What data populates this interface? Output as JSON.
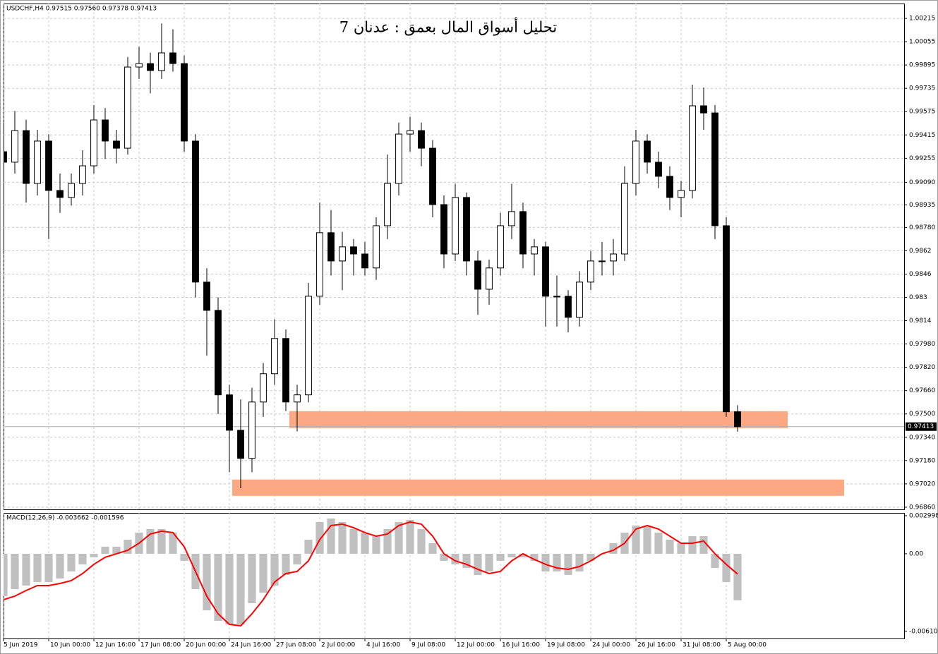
{
  "chart_data": [
    {
      "type": "candlestick",
      "title": "تحليل أسواق المال بعمق : عدنان 7",
      "header": "USDCHF,H4  0.97515 0.97560 0.97378 0.97413",
      "up_color": "#ffffff",
      "down_color": "#000000",
      "wick_color": "#000000",
      "candles": [
        [
          0.993,
          0.995,
          0.986,
          0.99228
        ],
        [
          0.99228,
          0.9958,
          0.9915,
          0.99445
        ],
        [
          0.99445,
          0.9952,
          0.9895,
          0.99082
        ],
        [
          0.99082,
          0.9945,
          0.99,
          0.99373
        ],
        [
          0.99373,
          0.9942,
          0.987,
          0.99034
        ],
        [
          0.99034,
          0.9915,
          0.9888,
          0.98986
        ],
        [
          0.98986,
          0.9915,
          0.9893,
          0.99082
        ],
        [
          0.99082,
          0.9931,
          0.99,
          0.99203
        ],
        [
          0.99203,
          0.9962,
          0.9915,
          0.99518
        ],
        [
          0.99518,
          0.996,
          0.9925,
          0.99373
        ],
        [
          0.99373,
          0.9945,
          0.9922,
          0.99324
        ],
        [
          0.99324,
          0.9995,
          0.9928,
          0.99881
        ],
        [
          0.99881,
          1.0002,
          0.998,
          0.99905
        ],
        [
          0.99905,
          0.9998,
          0.997,
          0.99857
        ],
        [
          0.99857,
          1.0018,
          0.998,
          0.99978
        ],
        [
          0.99978,
          1.0014,
          0.9985,
          0.99905
        ],
        [
          0.99905,
          0.9996,
          0.993,
          0.99373
        ],
        [
          0.99373,
          0.9942,
          0.983,
          0.98405
        ],
        [
          0.98405,
          0.985,
          0.979,
          0.98211
        ],
        [
          0.98211,
          0.983,
          0.975,
          0.97631
        ],
        [
          0.97631,
          0.977,
          0.971,
          0.97388
        ],
        [
          0.97388,
          0.976,
          0.9699,
          0.97195
        ],
        [
          0.97195,
          0.9768,
          0.971,
          0.97582
        ],
        [
          0.97582,
          0.9785,
          0.9748,
          0.97776
        ],
        [
          0.97776,
          0.9815,
          0.977,
          0.98018
        ],
        [
          0.98018,
          0.9808,
          0.9752,
          0.97582
        ],
        [
          0.97582,
          0.977,
          0.9738,
          0.97631
        ],
        [
          0.97631,
          0.984,
          0.9758,
          0.98308
        ],
        [
          0.98308,
          0.9895,
          0.9825,
          0.98744
        ],
        [
          0.98744,
          0.989,
          0.9845,
          0.9855
        ],
        [
          0.9855,
          0.9875,
          0.9835,
          0.98647
        ],
        [
          0.98647,
          0.987,
          0.9845,
          0.98598
        ],
        [
          0.98598,
          0.9868,
          0.9845,
          0.98502
        ],
        [
          0.98502,
          0.9885,
          0.9842,
          0.98792
        ],
        [
          0.98792,
          0.9928,
          0.987,
          0.99082
        ],
        [
          0.99082,
          0.995,
          0.99,
          0.99421
        ],
        [
          0.99421,
          0.9954,
          0.993,
          0.99445
        ],
        [
          0.99445,
          0.995,
          0.992,
          0.99324
        ],
        [
          0.99324,
          0.9938,
          0.9885,
          0.98937
        ],
        [
          0.98937,
          0.99,
          0.985,
          0.98598
        ],
        [
          0.98598,
          0.9908,
          0.9855,
          0.98986
        ],
        [
          0.98986,
          0.9902,
          0.9845,
          0.9855
        ],
        [
          0.9855,
          0.9862,
          0.9818,
          0.98356
        ],
        [
          0.98356,
          0.9856,
          0.9825,
          0.98502
        ],
        [
          0.98502,
          0.9888,
          0.9845,
          0.98792
        ],
        [
          0.98792,
          0.9908,
          0.987,
          0.98889
        ],
        [
          0.98889,
          0.9895,
          0.985,
          0.98598
        ],
        [
          0.98598,
          0.987,
          0.9845,
          0.98647
        ],
        [
          0.98647,
          0.9868,
          0.981,
          0.98308
        ],
        [
          0.98308,
          0.9845,
          0.981,
          0.98308
        ],
        [
          0.98308,
          0.9835,
          0.9806,
          0.98163
        ],
        [
          0.98163,
          0.9848,
          0.981,
          0.98405
        ],
        [
          0.98405,
          0.9862,
          0.9835,
          0.9855
        ],
        [
          0.9855,
          0.9868,
          0.9845,
          0.9855
        ],
        [
          0.9855,
          0.987,
          0.9845,
          0.98598
        ],
        [
          0.98598,
          0.992,
          0.9855,
          0.99082
        ],
        [
          0.99082,
          0.9945,
          0.99,
          0.99373
        ],
        [
          0.99373,
          0.9942,
          0.9915,
          0.99228
        ],
        [
          0.99228,
          0.993,
          0.9905,
          0.99131
        ],
        [
          0.99131,
          0.992,
          0.989,
          0.98986
        ],
        [
          0.98986,
          0.991,
          0.9885,
          0.99034
        ],
        [
          0.99034,
          0.9976,
          0.9898,
          0.99615
        ],
        [
          0.99615,
          0.9974,
          0.9945,
          0.99566
        ],
        [
          0.99566,
          0.9962,
          0.987,
          0.98792
        ],
        [
          0.98792,
          0.9885,
          0.9748,
          0.97515
        ],
        [
          0.97515,
          0.9756,
          0.97378,
          0.97413
        ]
      ],
      "xlim": [
        0,
        79.75
      ],
      "xticks": [
        {
          "value": 0,
          "label": "5 Jun 2019"
        },
        {
          "value": 4,
          "label": "10 Jun 00:00"
        },
        {
          "value": 8,
          "label": "12 Jun 16:00"
        },
        {
          "value": 12,
          "label": "17 Jun 08:00"
        },
        {
          "value": 16,
          "label": "20 Jun 00:00"
        },
        {
          "value": 20,
          "label": "24 Jun 16:00"
        },
        {
          "value": 24,
          "label": "27 Jun 08:00"
        },
        {
          "value": 28,
          "label": "2 Jul 00:00"
        },
        {
          "value": 32,
          "label": "4 Jul 16:00"
        },
        {
          "value": 36,
          "label": "9 Jul 08:00"
        },
        {
          "value": 40,
          "label": "12 Jul 00:00"
        },
        {
          "value": 44,
          "label": "16 Jul 16:00"
        },
        {
          "value": 48,
          "label": "19 Jul 08:00"
        },
        {
          "value": 52,
          "label": "24 Jul 00:00"
        },
        {
          "value": 56,
          "label": "26 Jul 16:00"
        },
        {
          "value": 60,
          "label": "31 Jul 08:00"
        },
        {
          "value": 64,
          "label": "5 Aug 00:00"
        }
      ],
      "ylim": [
        0.96845,
        1.00317
      ],
      "yticks": [
        1.00215,
        1.00055,
        0.99895,
        0.99735,
        0.99575,
        0.99415,
        0.99255,
        {
          "value": 0.9909,
          "label": "0.99090"
        },
        0.98935,
        {
          "value": 0.9878,
          "label": "0.98780"
        },
        0.9862,
        0.9846,
        0.983,
        0.9814,
        {
          "value": 0.9798,
          "label": "0.97980"
        },
        {
          "value": 0.9782,
          "label": "0.97820"
        },
        {
          "value": 0.9766,
          "label": "0.97660"
        },
        {
          "value": 0.975,
          "label": "0.97500"
        },
        {
          "value": 0.9734,
          "label": "0.97340"
        },
        {
          "value": 0.9718,
          "label": "0.97180"
        },
        {
          "value": 0.9702,
          "label": "0.97020"
        },
        {
          "value": 0.9686,
          "label": "0.96860"
        }
      ],
      "grid": true,
      "current_price": 0.97413,
      "zones": [
        {
          "x": [
            25.31,
            69.44
          ],
          "y": [
            0.97403,
            0.97519
          ],
          "color": "#fca882"
        },
        {
          "x": [
            20.25,
            74.44
          ],
          "y": [
            0.96938,
            0.9705
          ],
          "color": "#fca882"
        }
      ]
    },
    {
      "type": "macd",
      "title": "MACD(12,26,9) -0.003662 -0.001596",
      "histogram": {
        "color": "#c0c0c0",
        "values": [
          -0.003336,
          -0.00278,
          -0.002502,
          -0.002224,
          -0.002224,
          -0.001946,
          -0.00139,
          -0.000834,
          -0.000278,
          0.000556,
          0.000556,
          0.001112,
          0.001668,
          0.001946,
          0.001946,
          0.001668,
          -0.000556,
          -0.00278,
          -0.004448,
          -0.005282,
          -0.00556,
          -0.00556,
          -0.003892,
          -0.003058,
          -0.002502,
          -0.001668,
          -0.000834,
          0.001112,
          0.002502,
          0.00278,
          0.002502,
          0.001946,
          0.001668,
          0.00139,
          0.001946,
          0.002502,
          0.002669,
          0.001946,
          0.000834,
          -0.000556,
          -0.000834,
          -0.001112,
          -0.001668,
          -0.00139,
          -0.000556,
          -0.000278,
          -0.000278,
          -0.000556,
          -0.00139,
          -0.00139,
          -0.001668,
          -0.00139,
          -0.000556,
          0,
          0.000834,
          0.001668,
          0.002224,
          0.002224,
          0.001668,
          0.001112,
          0.000834,
          0.00139,
          0.00139,
          -0.001112,
          -0.002224,
          -0.003662
        ]
      },
      "signal": {
        "color": "#ff0000",
        "values": [
          -0.003614,
          -0.003336,
          -0.002891,
          -0.002502,
          -0.002502,
          -0.002335,
          -0.002113,
          -0.001557,
          -0.000834,
          -0.000278,
          0,
          0.000278,
          0.000834,
          0.001557,
          0.001779,
          0.001668,
          0.000556,
          -0.00139,
          -0.003336,
          -0.004726,
          -0.00556,
          -0.005671,
          -0.004726,
          -0.003614,
          -0.002224,
          -0.001557,
          -0.00139,
          -0.000556,
          0.001112,
          0.002224,
          0.002335,
          0.002057,
          0.001668,
          0.00139,
          0.001557,
          0.002224,
          0.002502,
          0.002335,
          0.00139,
          0,
          -0.000556,
          -0.000834,
          -0.001223,
          -0.001557,
          -0.00139,
          -0.000556,
          0,
          -0.000445,
          -0.000834,
          -0.001112,
          -0.001223,
          -0.001001,
          -0.000556,
          0,
          0.000278,
          0.000834,
          0.001946,
          0.002224,
          0.001946,
          0.00139,
          0.000834,
          0.000834,
          0.001001,
          0,
          -0.000834,
          -0.001596
        ]
      },
      "ylim": [
        -0.00667,
        0.00322
      ],
      "yticks": [
        0.002998,
        {
          "value": 0,
          "label": "0.00"
        },
        -0.006101
      ]
    }
  ]
}
